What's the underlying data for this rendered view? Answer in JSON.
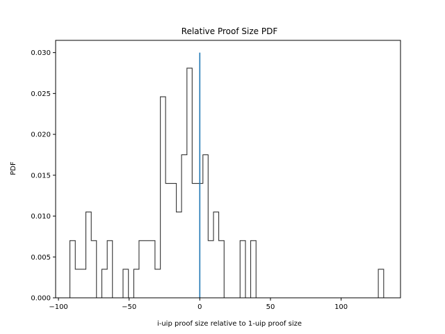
{
  "chart_data": {
    "type": "histogram",
    "title": "Relative Proof Size PDF",
    "xlabel": "i-uip proof size relative to 1-uip proof size",
    "ylabel": "PDF",
    "xlim": [
      -102,
      142
    ],
    "ylim": [
      0,
      0.0315
    ],
    "xticks": [
      -100,
      -50,
      0,
      50,
      100
    ],
    "xtick_labels": [
      "−100",
      "−50",
      "0",
      "50",
      "100"
    ],
    "yticks": [
      0.0,
      0.005,
      0.01,
      0.015,
      0.02,
      0.025,
      0.03
    ],
    "ytick_labels": [
      "0.000",
      "0.005",
      "0.010",
      "0.015",
      "0.020",
      "0.025",
      "0.030"
    ],
    "grid": false,
    "legend": "none",
    "histogram": {
      "style": "step",
      "color": "#333333",
      "bin_edges": [
        -91.9,
        -88.1,
        -84.3,
        -80.6,
        -76.8,
        -73.1,
        -69.3,
        -65.5,
        -61.8,
        -58.0,
        -54.3,
        -50.5,
        -46.7,
        -43.0,
        -39.2,
        -35.4,
        -31.7,
        -27.9,
        -24.2,
        -20.4,
        -16.6,
        -12.9,
        -9.1,
        -5.4,
        -1.6,
        2.2,
        5.9,
        9.7,
        13.4,
        17.2,
        21.0,
        24.7,
        28.5,
        32.3,
        36.0,
        39.8,
        43.5,
        47.3,
        51.1,
        54.8,
        58.6,
        62.3,
        66.1,
        69.9,
        73.6,
        77.4,
        81.2,
        84.9,
        88.7,
        92.4,
        96.2,
        100.0,
        103.7,
        107.5,
        111.3,
        115.0,
        118.8,
        122.5,
        126.3,
        130.1
      ],
      "densities": [
        0.007,
        0.0035,
        0.0035,
        0.0105,
        0.007,
        0.0,
        0.0035,
        0.007,
        0.0,
        0.0,
        0.0035,
        0.0,
        0.0035,
        0.007,
        0.007,
        0.007,
        0.0035,
        0.0246,
        0.014,
        0.014,
        0.0105,
        0.0175,
        0.0281,
        0.014,
        0.014,
        0.0175,
        0.007,
        0.0105,
        0.007,
        0.0,
        0.0,
        0.0,
        0.007,
        0.0,
        0.007,
        0.0,
        0.0,
        0.0,
        0.0,
        0.0,
        0.0,
        0.0,
        0.0,
        0.0,
        0.0,
        0.0,
        0.0,
        0.0,
        0.0,
        0.0,
        0.0,
        0.0,
        0.0,
        0.0,
        0.0,
        0.0,
        0.0,
        0.0,
        0.0035
      ]
    },
    "reference_line": {
      "x": 0,
      "y_range": [
        0,
        0.03
      ],
      "color": "#1f77b4"
    }
  }
}
